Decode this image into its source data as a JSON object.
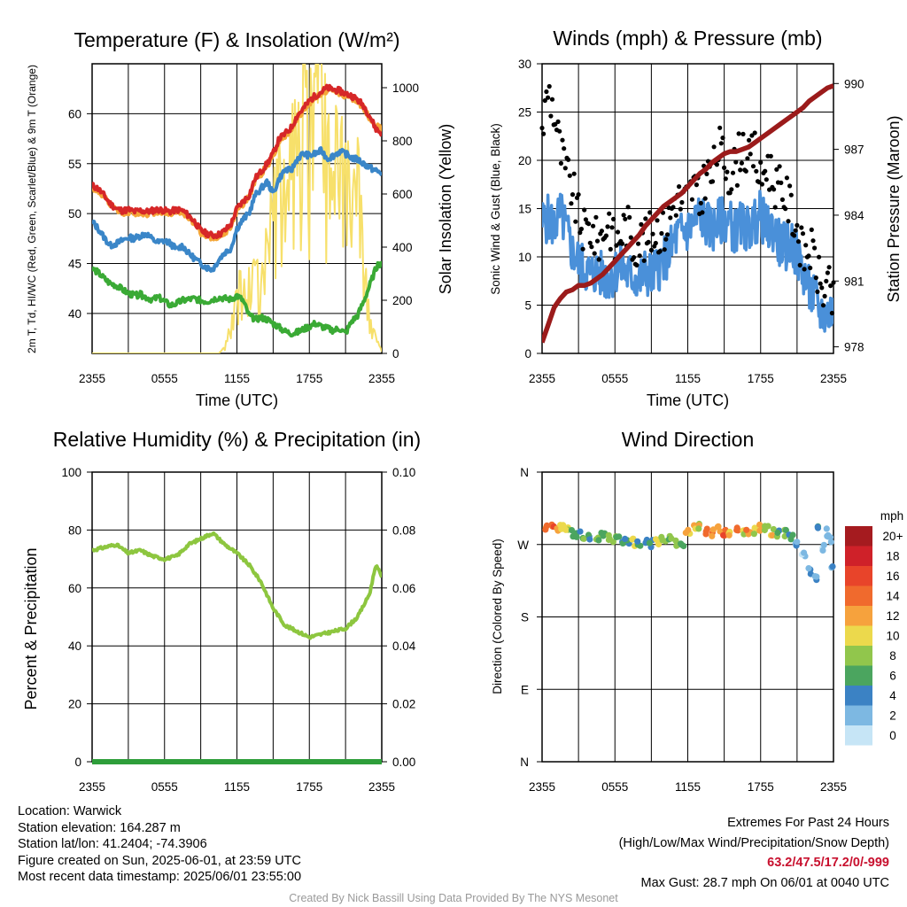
{
  "chart_data": [
    {
      "type": "line",
      "title": "Temperature (F) & Insolation (W/m²)",
      "xlabel": "Time (UTC)",
      "ylabel_left": "2m T, Td, HI/WC (Red, Green, Scarlet/Blue) & 9m T (Orange)",
      "ylabel_right": "Solar Insolation (Yellow)",
      "x_ticks": [
        "2355",
        "0555",
        "1155",
        "1755",
        "2355"
      ],
      "ylim_left": [
        36,
        65
      ],
      "left_ticks": [
        40,
        45,
        50,
        55,
        60
      ],
      "ylim_right": [
        0,
        1090
      ],
      "right_ticks": [
        0,
        200,
        400,
        600,
        800,
        1000
      ],
      "x_hours": [
        0,
        0.5,
        1,
        1.5,
        2,
        2.5,
        3,
        3.5,
        4,
        4.5,
        5,
        5.5,
        6,
        6.5,
        7,
        7.5,
        8,
        8.5,
        9,
        9.5,
        10,
        10.5,
        11,
        11.5,
        12,
        12.5,
        13,
        13.5,
        14,
        14.5,
        15,
        15.5,
        16,
        16.5,
        17,
        17.5,
        18,
        18.5,
        19,
        19.5,
        20,
        20.5,
        21,
        21.5,
        22,
        22.5,
        23,
        23.5,
        24
      ],
      "series": [
        {
          "name": "2m T",
          "color": "#d62728",
          "values": [
            52.8,
            52.5,
            51.8,
            51.0,
            50.5,
            50.3,
            50.4,
            50.2,
            50.3,
            50.2,
            50.3,
            50.4,
            50.3,
            50.2,
            50.4,
            50.3,
            49.8,
            49.2,
            48.3,
            48.0,
            47.8,
            47.9,
            48.3,
            48.9,
            50.5,
            51.2,
            51.8,
            53.5,
            54.2,
            55.0,
            56.0,
            57.5,
            58.0,
            58.6,
            59.8,
            60.5,
            61.3,
            61.8,
            62.2,
            62.6,
            62.4,
            62.3,
            62.0,
            61.8,
            61.4,
            60.8,
            59.8,
            58.5,
            58.0
          ]
        },
        {
          "name": "9m T",
          "color": "#f4a638",
          "values": [
            52.6,
            52.3,
            51.6,
            50.8,
            50.3,
            50.1,
            50.2,
            50.0,
            50.1,
            50.0,
            50.1,
            50.2,
            50.1,
            50.0,
            50.2,
            50.1,
            49.6,
            49.0,
            48.1,
            47.8,
            47.6,
            47.7,
            48.1,
            48.7,
            50.3,
            51.0,
            51.6,
            53.3,
            54.0,
            54.8,
            55.8,
            57.3,
            57.8,
            58.4,
            59.6,
            60.3,
            61.1,
            61.6,
            62.0,
            62.4,
            62.2,
            62.1,
            61.8,
            61.6,
            61.2,
            60.6,
            59.6,
            58.8,
            58.4
          ]
        },
        {
          "name": "HI/WC",
          "color": "#3a86c8",
          "values": [
            49.2,
            48.5,
            47.6,
            46.8,
            47.0,
            47.3,
            47.6,
            47.5,
            47.8,
            48.0,
            47.4,
            47.1,
            47.3,
            47.0,
            46.4,
            46.8,
            46.0,
            45.5,
            45.0,
            44.6,
            44.4,
            45.4,
            46.1,
            46.5,
            48.5,
            49.4,
            50.0,
            51.8,
            52.5,
            53.2,
            52.0,
            53.5,
            54.4,
            54.3,
            55.5,
            56.0,
            55.8,
            56.0,
            56.3,
            55.5,
            55.8,
            56.2,
            56.0,
            55.6,
            55.4,
            55.0,
            54.6,
            54.3,
            54.0
          ]
        },
        {
          "name": "Td",
          "color": "#3aaa35",
          "values": [
            44.5,
            44.1,
            43.5,
            43.0,
            42.8,
            42.4,
            42.0,
            41.8,
            41.9,
            41.6,
            41.4,
            41.6,
            41.2,
            40.8,
            41.0,
            41.3,
            41.4,
            41.5,
            41.3,
            41.2,
            41.4,
            41.6,
            41.5,
            41.4,
            41.8,
            41.3,
            39.8,
            39.4,
            39.6,
            39.4,
            39.0,
            38.6,
            38.2,
            38.0,
            38.1,
            38.4,
            38.7,
            39.0,
            38.7,
            38.5,
            38.3,
            38.5,
            38.0,
            39.2,
            39.8,
            41.2,
            42.8,
            44.5,
            45.2
          ]
        },
        {
          "name": "Solar Insolation",
          "axis": "right",
          "color": "#f7e06b",
          "values": [
            0,
            0,
            0,
            0,
            0,
            0,
            0,
            0,
            0,
            0,
            0,
            0,
            0,
            0,
            0,
            0,
            0,
            0,
            0,
            0,
            0,
            0,
            20,
            100,
            200,
            300,
            250,
            300,
            220,
            380,
            500,
            600,
            550,
            800,
            650,
            900,
            750,
            1000,
            900,
            700,
            800,
            600,
            750,
            500,
            650,
            300,
            150,
            50,
            10
          ]
        }
      ]
    },
    {
      "type": "scatter",
      "title": "Winds (mph) & Pressure (mb)",
      "xlabel": "Time (UTC)",
      "ylabel_left": "Sonic Wind & Gust (Blue, Black)",
      "ylabel_right": "Station Pressure (Maroon)",
      "x_ticks": [
        "2355",
        "0555",
        "1155",
        "1755",
        "2355"
      ],
      "ylim_left": [
        0,
        30
      ],
      "left_ticks": [
        0,
        5,
        10,
        15,
        20,
        25,
        30
      ],
      "ylim_right": [
        977.7,
        990.9
      ],
      "right_ticks": [
        978,
        981,
        984,
        987,
        990
      ],
      "x_hours": [
        0,
        0.5,
        1,
        1.5,
        2,
        2.5,
        3,
        3.5,
        4,
        4.5,
        5,
        5.5,
        6,
        6.5,
        7,
        7.5,
        8,
        8.5,
        9,
        9.5,
        10,
        10.5,
        11,
        11.5,
        12,
        12.5,
        13,
        13.5,
        14,
        14.5,
        15,
        15.5,
        16,
        16.5,
        17,
        17.5,
        18,
        18.5,
        19,
        19.5,
        20,
        20.5,
        21,
        21.5,
        22,
        22.5,
        23,
        23.5,
        24
      ],
      "series": [
        {
          "name": "Sonic Wind",
          "color": "#4a90d9",
          "values": [
            13.5,
            14.0,
            13.2,
            14.5,
            12.8,
            10.5,
            9.5,
            8.8,
            8.2,
            8.5,
            8.0,
            7.8,
            8.5,
            9.0,
            8.2,
            8.0,
            7.5,
            8.5,
            8.0,
            8.8,
            9.5,
            10.5,
            12.0,
            12.5,
            12.8,
            13.5,
            14.5,
            13.5,
            12.8,
            13.5,
            14.0,
            13.5,
            12.5,
            13.5,
            12.8,
            13.5,
            14.5,
            12.8,
            13.0,
            11.5,
            11.0,
            11.5,
            10.0,
            8.5,
            6.5,
            5.5,
            4.2,
            4.0,
            4.5
          ]
        },
        {
          "name": "Gust",
          "color": "#000000",
          "values": [
            23.0,
            27.5,
            25.0,
            21.0,
            18.5,
            17.0,
            14.0,
            12.5,
            13.0,
            11.5,
            12.5,
            14.0,
            11.0,
            12.5,
            13.5,
            11.0,
            12.0,
            11.5,
            12.5,
            13.0,
            12.5,
            14.0,
            16.5,
            15.5,
            16.0,
            17.5,
            15.0,
            19.0,
            18.0,
            21.5,
            20.0,
            18.5,
            19.5,
            22.0,
            19.5,
            21.0,
            17.5,
            20.0,
            18.0,
            17.0,
            16.5,
            15.0,
            13.0,
            10.0,
            11.0,
            9.5,
            6.5,
            7.0,
            5.0
          ]
        },
        {
          "name": "Station Pressure",
          "axis": "right",
          "color": "#9b1b1b",
          "values": [
            978.2,
            979.0,
            979.8,
            980.2,
            980.5,
            980.6,
            980.8,
            980.8,
            980.9,
            981.1,
            981.3,
            981.6,
            981.9,
            982.2,
            982.5,
            982.8,
            983.1,
            983.5,
            983.8,
            984.1,
            984.4,
            984.6,
            984.8,
            985.0,
            985.3,
            985.6,
            985.9,
            986.1,
            986.4,
            986.6,
            986.8,
            986.9,
            986.9,
            987.0,
            987.1,
            987.3,
            987.5,
            987.7,
            987.9,
            988.1,
            988.3,
            988.5,
            988.7,
            988.9,
            989.2,
            989.4,
            989.6,
            989.8,
            989.9
          ]
        }
      ]
    },
    {
      "type": "line",
      "title": "Relative Humidity (%) & Precipitation (in)",
      "xlabel": "",
      "ylabel_left": "Percent & Precipitation",
      "x_ticks": [
        "2355",
        "0555",
        "1155",
        "1755",
        "2355"
      ],
      "ylim_left": [
        0,
        100
      ],
      "left_ticks": [
        0,
        20,
        40,
        60,
        80,
        100
      ],
      "ylim_right": [
        0,
        0.1
      ],
      "right_ticks": [
        "0.00",
        "0.02",
        "0.04",
        "0.06",
        "0.08",
        "0.10"
      ],
      "x_hours": [
        0,
        1,
        2,
        3,
        4,
        5,
        6,
        7,
        8,
        9,
        10,
        11,
        12,
        13,
        14,
        15,
        16,
        17,
        18,
        19,
        20,
        21,
        22,
        23,
        23.5,
        24
      ],
      "series": [
        {
          "name": "Relative Humidity",
          "color": "#8dc63f",
          "values": [
            73,
            74,
            75,
            72,
            73,
            71,
            70,
            71,
            75,
            77,
            79,
            75,
            72,
            68,
            62,
            53,
            47,
            45,
            43,
            44,
            45,
            46,
            50,
            58,
            68,
            64
          ]
        },
        {
          "name": "Precipitation",
          "axis": "right",
          "color": "#2e9e3a",
          "values": [
            0,
            0,
            0,
            0,
            0,
            0,
            0,
            0,
            0,
            0,
            0,
            0,
            0,
            0,
            0,
            0,
            0,
            0,
            0,
            0,
            0,
            0,
            0,
            0,
            0,
            0
          ]
        }
      ]
    },
    {
      "type": "scatter",
      "title": "Wind Direction",
      "xlabel": "",
      "ylabel_left": "Direction (Colored By Speed)",
      "x_ticks": [
        "2355",
        "0555",
        "1155",
        "1755",
        "2355"
      ],
      "y_ticks": [
        "N",
        "E",
        "S",
        "W",
        "N"
      ],
      "ylim_left": [
        0,
        360
      ],
      "x_hours": [
        0,
        0.4,
        0.8,
        1.2,
        1.6,
        2,
        2.5,
        3,
        3.5,
        4,
        4.5,
        5,
        5.5,
        6,
        6.5,
        7,
        7.5,
        8,
        8.5,
        9,
        9.5,
        10,
        10.5,
        11,
        11.5,
        12,
        12.5,
        13,
        13.5,
        14,
        14.5,
        15,
        15.5,
        16,
        16.5,
        17,
        17.5,
        18,
        18.5,
        19,
        19.5,
        20,
        20.5,
        21,
        21.5,
        22,
        22.5,
        22.8,
        23.1,
        23.4,
        23.7,
        24
      ],
      "values": [
        285,
        289,
        291,
        292,
        290,
        288,
        284,
        282,
        280,
        279,
        278,
        281,
        279,
        278,
        276,
        275,
        273,
        272,
        272,
        271,
        274,
        275,
        276,
        273,
        272,
        285,
        290,
        291,
        287,
        285,
        288,
        284,
        286,
        290,
        287,
        285,
        288,
        290,
        289,
        286,
        283,
        285,
        278,
        269,
        255,
        238,
        230,
        292,
        265,
        285,
        275,
        240
      ],
      "speeds": [
        14,
        13,
        15,
        12,
        10,
        9,
        7,
        6,
        8,
        5,
        7,
        6,
        8,
        7,
        6,
        5,
        9,
        6,
        4,
        5,
        10,
        7,
        8,
        9,
        6,
        11,
        12,
        10,
        14,
        13,
        12,
        15,
        11,
        13,
        10,
        12,
        9,
        11,
        8,
        10,
        6,
        8,
        5,
        3,
        2,
        4,
        2,
        4,
        2,
        3,
        2,
        3
      ],
      "legend": {
        "title": "mph",
        "labels": [
          "20+",
          "18",
          "16",
          "14",
          "12",
          "10",
          "8",
          "6",
          "4",
          "2",
          "0"
        ],
        "colors": [
          "#a51b1f",
          "#cf2129",
          "#e8442a",
          "#f06a2d",
          "#f6a23d",
          "#ecd94c",
          "#91c64c",
          "#4ba55f",
          "#3b82c4",
          "#7db8e2",
          "#c6e5f6"
        ]
      }
    }
  ],
  "info_left": [
    "Location: Warwick",
    "Station elevation: 164.287 m",
    "Station lat/lon: 41.2404; -74.3906",
    "Figure created on Sun, 2025-06-01, at 23:59 UTC",
    "Most recent data timestamp: 2025/06/01 23:55:00"
  ],
  "info_right": {
    "line1": "Extremes For Past 24 Hours",
    "line2": "(High/Low/Max Wind/Precipitation/Snow Depth)",
    "extremes": "63.2/47.5/17.2/0/-999",
    "gust": "Max Gust: 28.7 mph On 06/01 at 0040 UTC"
  },
  "credit": "Created By Nick Bassill Using Data Provided By The NYS Mesonet"
}
